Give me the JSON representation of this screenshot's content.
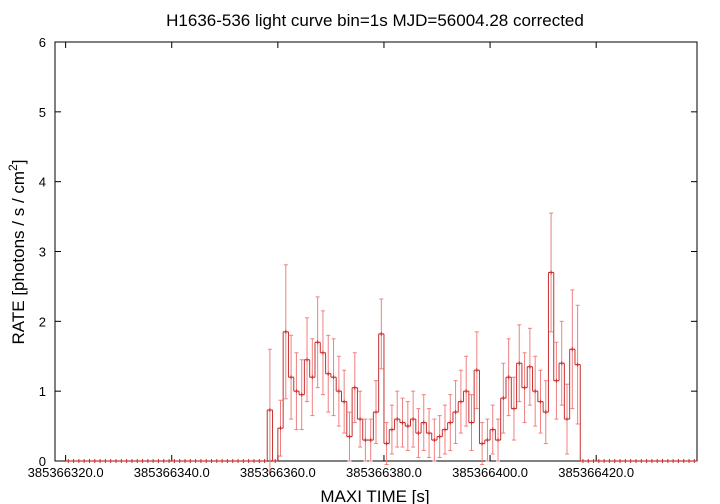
{
  "chart_data": {
    "type": "step",
    "title": "H1636-536 light curve bin=1s MJD=56004.28 corrected",
    "xlabel": "MAXI TIME [s]",
    "ylabel": [
      "RATE [photons / s / cm",
      "2",
      "]"
    ],
    "xlim": [
      385366318,
      385366439
    ],
    "ylim": [
      0,
      6
    ],
    "yticks": [
      0,
      1,
      2,
      3,
      4,
      5,
      6
    ],
    "xticks": [
      {
        "value": 385366320,
        "label": "385366320.0"
      },
      {
        "value": 385366340,
        "label": "385366340.0"
      },
      {
        "value": 385366360,
        "label": "385366360.0"
      },
      {
        "value": 385366380,
        "label": "385366380.0"
      },
      {
        "value": 385366400,
        "label": "385366400.0"
      },
      {
        "value": 385366420,
        "label": "385366420.0"
      }
    ],
    "x": [
      385366320.5,
      385366321.5,
      385366322.5,
      385366323.5,
      385366324.5,
      385366325.5,
      385366326.5,
      385366327.5,
      385366328.5,
      385366329.5,
      385366330.5,
      385366331.5,
      385366332.5,
      385366333.5,
      385366334.5,
      385366335.5,
      385366336.5,
      385366337.5,
      385366338.5,
      385366339.5,
      385366340.5,
      385366341.5,
      385366342.5,
      385366343.5,
      385366344.5,
      385366345.5,
      385366346.5,
      385366347.5,
      385366348.5,
      385366349.5,
      385366350.5,
      385366351.5,
      385366352.5,
      385366353.5,
      385366354.5,
      385366355.5,
      385366356.5,
      385366357.5,
      385366358.5,
      385366359.5,
      385366360.5,
      385366361.5,
      385366362.5,
      385366363.5,
      385366364.5,
      385366365.5,
      385366366.5,
      385366367.5,
      385366368.5,
      385366369.5,
      385366370.5,
      385366371.5,
      385366372.5,
      385366373.5,
      385366374.5,
      385366375.5,
      385366376.5,
      385366377.5,
      385366378.5,
      385366379.5,
      385366380.5,
      385366381.5,
      385366382.5,
      385366383.5,
      385366384.5,
      385366385.5,
      385366386.5,
      385366387.5,
      385366388.5,
      385366389.5,
      385366390.5,
      385366391.5,
      385366392.5,
      385366393.5,
      385366394.5,
      385366395.5,
      385366396.5,
      385366397.5,
      385366398.5,
      385366399.5,
      385366400.5,
      385366401.5,
      385366402.5,
      385366403.5,
      385366404.5,
      385366405.5,
      385366406.5,
      385366407.5,
      385366408.5,
      385366409.5,
      385366410.5,
      385366411.5,
      385366412.5,
      385366413.5,
      385366414.5,
      385366415.5,
      385366416.5,
      385366417.5,
      385366418.5,
      385366419.5,
      385366420.5,
      385366421.5,
      385366422.5,
      385366423.5,
      385366424.5,
      385366425.5,
      385366426.5,
      385366427.5,
      385366428.5,
      385366429.5,
      385366430.5,
      385366431.5,
      385366432.5,
      385366433.5,
      385366434.5,
      385366435.5,
      385366436.5,
      385366437.5,
      385366438.5
    ],
    "series": [
      {
        "color": "#c83030",
        "error_color": "#f08080",
        "values": [
          0,
          0,
          0,
          0,
          0,
          0,
          0,
          0,
          0,
          0,
          0,
          0,
          0,
          0,
          0,
          0,
          0,
          0,
          0,
          0,
          0,
          0,
          0,
          0,
          0,
          0,
          0,
          0,
          0,
          0,
          0,
          0,
          0,
          0,
          0,
          0,
          0,
          0,
          0.73,
          0,
          0.47,
          1.85,
          1.2,
          1.0,
          0.95,
          1.45,
          1.2,
          1.7,
          1.55,
          1.25,
          1.2,
          1.0,
          0.85,
          0.35,
          1.05,
          0.6,
          0.3,
          0.3,
          0.7,
          1.82,
          0.25,
          0.45,
          0.6,
          0.55,
          0.5,
          0.6,
          0.4,
          0.55,
          0.4,
          0.3,
          0.35,
          0.45,
          0.55,
          0.7,
          0.85,
          1.0,
          0.55,
          1.3,
          0.25,
          0.3,
          0.45,
          0.3,
          0.9,
          1.2,
          0.75,
          1.4,
          1.05,
          1.35,
          1.0,
          0.85,
          0.7,
          2.7,
          1.15,
          1.4,
          0.6,
          1.6,
          1.38,
          0,
          0,
          0,
          0,
          0,
          0,
          0,
          0,
          0,
          0,
          0,
          0,
          0,
          0,
          0,
          0,
          0,
          0,
          0,
          0,
          0,
          0
        ],
        "errors": [
          0,
          0,
          0,
          0,
          0,
          0,
          0,
          0,
          0,
          0,
          0,
          0,
          0,
          0,
          0,
          0,
          0,
          0,
          0,
          0,
          0,
          0,
          0,
          0,
          0,
          0,
          0,
          0,
          0,
          0,
          0,
          0,
          0,
          0,
          0,
          0,
          0,
          0,
          0.87,
          0,
          0.4,
          0.96,
          0.6,
          0.55,
          0.5,
          0.6,
          0.55,
          0.65,
          0.6,
          0.55,
          0.55,
          0.5,
          0.45,
          0.35,
          0.5,
          0.4,
          0.3,
          0.3,
          0.45,
          0.5,
          0.3,
          0.35,
          0.4,
          0.35,
          0.35,
          0.4,
          0.35,
          0.4,
          0.35,
          0.3,
          0.3,
          0.35,
          0.4,
          0.45,
          0.45,
          0.5,
          0.4,
          0.55,
          0.3,
          0.3,
          0.35,
          0.3,
          0.5,
          0.55,
          0.45,
          0.55,
          0.5,
          0.55,
          0.5,
          0.45,
          0.45,
          0.85,
          0.55,
          0.6,
          0.5,
          0.85,
          0.85,
          0,
          0,
          0,
          0,
          0,
          0,
          0,
          0,
          0,
          0,
          0,
          0,
          0,
          0,
          0,
          0,
          0,
          0,
          0,
          0,
          0,
          0
        ]
      }
    ]
  }
}
